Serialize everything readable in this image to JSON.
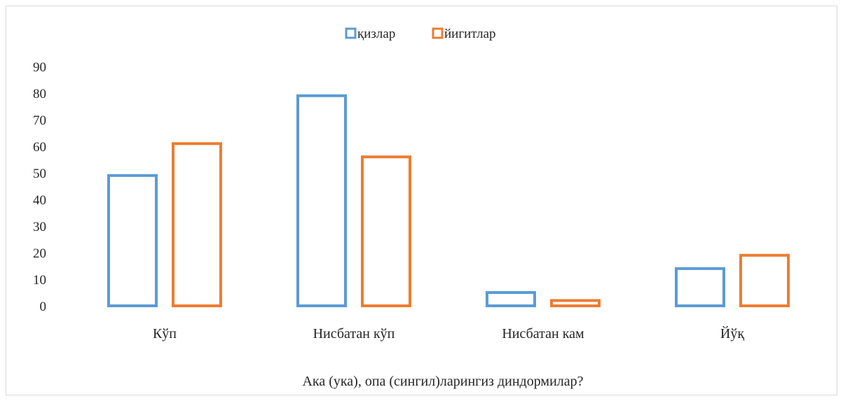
{
  "chart_data": {
    "type": "bar",
    "categories": [
      "Кўп",
      "Нисбатан кўп",
      "Нисбатан кам",
      "Йўқ"
    ],
    "series": [
      {
        "name": "қизлар",
        "values": [
          49,
          79,
          5,
          14
        ],
        "color": "#5b9bd5"
      },
      {
        "name": "йигитлар",
        "values": [
          61,
          56,
          2,
          19
        ],
        "color": "#ed7d31"
      }
    ],
    "yticks": [
      "0",
      "10",
      "20",
      "30",
      "40",
      "50",
      "60",
      "70",
      "80",
      "90"
    ],
    "ylim": [
      0,
      90
    ],
    "xlabel": "Ака (ука), опа (сингил)ларингиз диндормилар?",
    "ylabel": "",
    "title": "",
    "legend_position": "top-center",
    "bar_style": "outline",
    "grid": false
  }
}
